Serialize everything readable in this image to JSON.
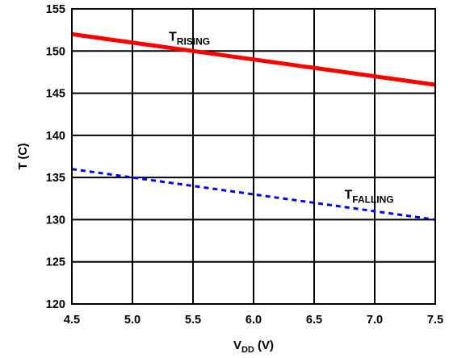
{
  "chart_data": {
    "type": "line",
    "title": "",
    "xlabel": {
      "main": "V",
      "sub": "DD",
      "rest": " (V)"
    },
    "ylabel": "T (C)",
    "xlim": [
      4.5,
      7.5
    ],
    "ylim": [
      120,
      155
    ],
    "xticks": [
      4.5,
      5.0,
      5.5,
      6.0,
      6.5,
      7.0,
      7.5
    ],
    "xtick_labels": [
      "4.5",
      "5.0",
      "5.5",
      "6.0",
      "6.5",
      "7.0",
      "7.5"
    ],
    "yticks": [
      120,
      125,
      130,
      135,
      140,
      145,
      150,
      155
    ],
    "ytick_labels": [
      "120",
      "125",
      "130",
      "135",
      "140",
      "145",
      "150",
      "155"
    ],
    "grid": true,
    "legend": "none",
    "series": [
      {
        "name": "T_RISING",
        "label": {
          "main": "T",
          "sub": "RISING"
        },
        "color": "#ff0000",
        "style": "solid",
        "x": [
          4.5,
          7.5
        ],
        "y": [
          152,
          146
        ]
      },
      {
        "name": "T_FALLING",
        "label": {
          "main": "T",
          "sub": "FALLING"
        },
        "color": "#0000ff",
        "style": "dashed",
        "x": [
          4.5,
          7.5
        ],
        "y": [
          136,
          130
        ]
      }
    ],
    "annotations": [
      {
        "series": 0,
        "text_main": "T",
        "text_sub": "RISING",
        "x": 5.3,
        "y": 151.2
      },
      {
        "series": 1,
        "text_main": "T",
        "text_sub": "FALLING",
        "x": 6.75,
        "y": 132.5
      }
    ]
  }
}
